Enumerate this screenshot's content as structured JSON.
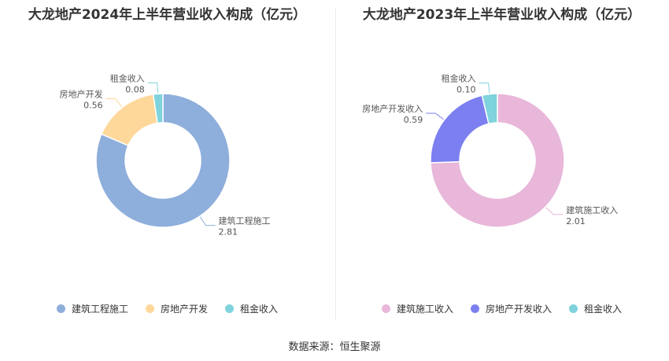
{
  "source": "数据来源：恒生聚源",
  "chart_data": [
    {
      "type": "pie",
      "title": "大龙地产2024年上半年营业收入构成（亿元）",
      "categories": [
        "建筑工程施工",
        "房地产开发",
        "租金收入"
      ],
      "values": [
        2.81,
        0.56,
        0.08
      ],
      "value_labels": [
        "2.81",
        "0.56",
        "0.08"
      ],
      "colors": [
        "#8eaedb",
        "#fdd89a",
        "#7fd3dc"
      ],
      "legend": "bottom",
      "donut": true
    },
    {
      "type": "pie",
      "title": "大龙地产2023年上半年营业收入构成（亿元）",
      "categories": [
        "建筑施工收入",
        "房地产开发收入",
        "租金收入"
      ],
      "values": [
        2.01,
        0.59,
        0.1
      ],
      "value_labels": [
        "2.01",
        "0.59",
        "0.10"
      ],
      "colors": [
        "#e8b7d9",
        "#7b7ff0",
        "#7fd3dc"
      ],
      "legend": "bottom",
      "donut": true
    }
  ]
}
